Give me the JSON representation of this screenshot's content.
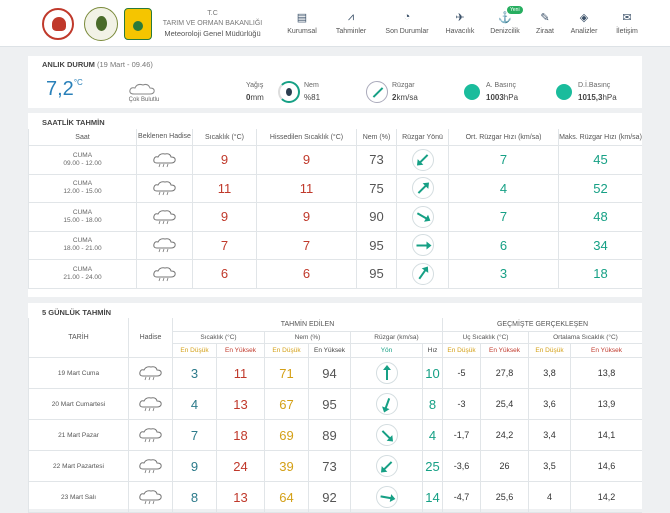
{
  "header": {
    "org_l1": "T.C",
    "org_l2": "TARIM VE ORMAN BAKANLIĞI",
    "org_l3": "Meteoroloji Genel Müdürlüğü",
    "nav": [
      {
        "label": "Kurumsal",
        "icon": "book-icon"
      },
      {
        "label": "Tahminler",
        "icon": "chart-icon"
      },
      {
        "label": "Son Durumlar",
        "icon": "gauge-icon"
      },
      {
        "label": "Havacılık",
        "icon": "plane-icon"
      },
      {
        "label": "Denizcilik",
        "icon": "anchor-icon",
        "badge": "Yeni"
      },
      {
        "label": "Ziraat",
        "icon": "leaf-icon"
      },
      {
        "label": "Analizler",
        "icon": "analysis-icon"
      },
      {
        "label": "İletişim",
        "icon": "mail-icon"
      }
    ]
  },
  "now": {
    "title": "ANLIK DURUM",
    "time": "(19 Mart - 09.46)",
    "temp": "7,2",
    "temp_unit": "°C",
    "condition": "Çok Bulutlu",
    "rain_label": "Yağış",
    "rain_value": "0",
    "rain_unit": "mm",
    "hum_label": "Nem",
    "hum_value": "%81",
    "wind_label": "Rüzgar",
    "wind_value": "2",
    "wind_unit": "km/sa",
    "ap_label": "A. Basınç",
    "ap_value": "1003",
    "ap_unit": "hPa",
    "dp_label": "D.İ.Basınç",
    "dp_value": "1015,3",
    "dp_unit": "hPa"
  },
  "hourly": {
    "title": "SAATLİK TAHMİN",
    "headers": [
      "Saat",
      "Beklenen Hadise",
      "Sıcaklık (°C)",
      "Hissedilen Sıcaklık (°C)",
      "Nem (%)",
      "Rüzgar Yönü",
      "Ort. Rüzgar Hızı (km/sa)",
      "Maks. Rüzgar Hızı (km/sa)"
    ],
    "rows": [
      {
        "day": "CUMA",
        "time": "09.00 - 12.00",
        "temp": "9",
        "feels": "9",
        "hum": "73",
        "avg": "7",
        "max": "45",
        "dir": 225
      },
      {
        "day": "CUMA",
        "time": "12.00 - 15.00",
        "temp": "11",
        "feels": "11",
        "hum": "75",
        "avg": "4",
        "max": "52",
        "dir": 45
      },
      {
        "day": "CUMA",
        "time": "15.00 - 18.00",
        "temp": "9",
        "feels": "9",
        "hum": "90",
        "avg": "7",
        "max": "48",
        "dir": 120
      },
      {
        "day": "CUMA",
        "time": "18.00 - 21.00",
        "temp": "7",
        "feels": "7",
        "hum": "95",
        "avg": "6",
        "max": "34",
        "dir": 90
      },
      {
        "day": "CUMA",
        "time": "21.00 - 24.00",
        "temp": "6",
        "feels": "6",
        "hum": "95",
        "avg": "3",
        "max": "18",
        "dir": 35
      }
    ]
  },
  "daily": {
    "title": "5 GÜNLÜK TAHMİN",
    "group1": "TAHMİN EDİLEN",
    "group2": "GEÇMİŞTE GERÇEKLEŞEN",
    "h_date": "TARİH",
    "h_hadise": "Hadise",
    "h_temp": "Sıcaklık (°C)",
    "h_hum": "Nem (%)",
    "h_wind": "Rüzgar (km/sa)",
    "h_ext": "Uç Sıcaklık (°C)",
    "h_avg": "Ortalama Sıcaklık (°C)",
    "low": "En Düşük",
    "high": "En Yüksek",
    "dir": "Yön",
    "speed": "Hız",
    "rows": [
      {
        "date": "19 Mart Cuma",
        "tl": "3",
        "th": "11",
        "hl": "71",
        "hh": "94",
        "ws": "10",
        "el": "-5",
        "eh": "27,8",
        "al": "3,8",
        "ah": "13,8",
        "dir": 0
      },
      {
        "date": "20 Mart Cumartesi",
        "tl": "4",
        "th": "13",
        "hl": "67",
        "hh": "95",
        "ws": "8",
        "el": "-3",
        "eh": "25,4",
        "al": "3,6",
        "ah": "13,9",
        "dir": 200
      },
      {
        "date": "21 Mart Pazar",
        "tl": "7",
        "th": "18",
        "hl": "69",
        "hh": "89",
        "ws": "4",
        "el": "-1,7",
        "eh": "24,2",
        "al": "3,4",
        "ah": "14,1",
        "dir": 135
      },
      {
        "date": "22 Mart Pazartesi",
        "tl": "9",
        "th": "24",
        "hl": "39",
        "hh": "73",
        "ws": "25",
        "el": "-3,6",
        "eh": "26",
        "al": "3,5",
        "ah": "14,6",
        "dir": 225
      },
      {
        "date": "23 Mart Salı",
        "tl": "8",
        "th": "13",
        "hl": "64",
        "hh": "92",
        "ws": "14",
        "el": "-4,7",
        "eh": "25,6",
        "al": "4",
        "ah": "14,2",
        "dir": 100
      }
    ]
  }
}
